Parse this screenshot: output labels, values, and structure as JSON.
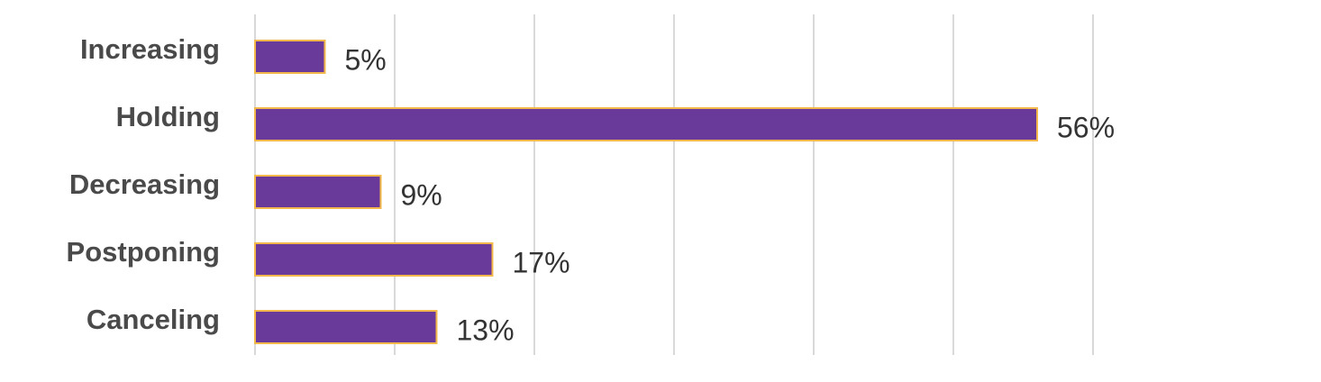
{
  "chart_data": {
    "type": "bar",
    "orientation": "horizontal",
    "categories": [
      "Increasing",
      "Holding",
      "Decreasing",
      "Postponing",
      "Canceling"
    ],
    "values": [
      5,
      56,
      9,
      17,
      13
    ],
    "data_labels": [
      "5%",
      "56%",
      "9%",
      "17%",
      "13%"
    ],
    "xlim": [
      0,
      60
    ],
    "x_gridline_step": 10,
    "grid": true,
    "legend": "none",
    "title": "",
    "xlabel": "",
    "ylabel": "",
    "colors": {
      "bar_fill": "#6a3a9a",
      "bar_stroke": "#f2b84b",
      "gridline": "#d9d9d9",
      "category_text": "#4a4a4a",
      "value_text": "#333333"
    }
  }
}
